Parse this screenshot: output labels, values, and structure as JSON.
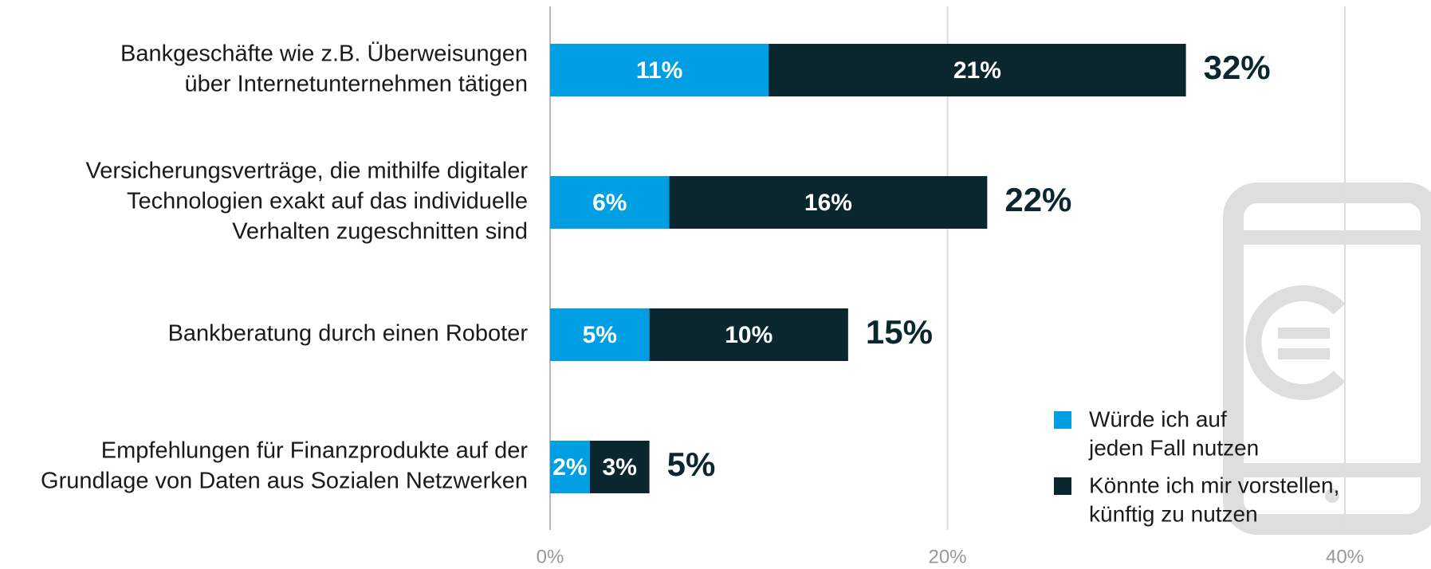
{
  "chart_data": {
    "type": "stacked_barh",
    "categories": [
      [
        "Bankgeschäfte wie z.B. Überweisungen",
        "über Internetunternehmen tätigen"
      ],
      [
        "Versicherungsverträge, die mithilfe digitaler",
        "Technologien exakt auf das individuelle",
        "Verhalten zugeschnitten sind"
      ],
      [
        "Bankberatung durch einen Roboter"
      ],
      [
        "Empfehlungen für Finanzprodukte auf der",
        "Grundlage von Daten aus Sozialen Netzwerken"
      ]
    ],
    "series": [
      {
        "name": [
          "Würde ich auf",
          "jeden Fall nutzen"
        ],
        "color": "#009fe3",
        "values": [
          11,
          6,
          5,
          2
        ],
        "value_labels": [
          "11%",
          "6%",
          "5%",
          "2%"
        ]
      },
      {
        "name": [
          "Könnte ich mir vorstellen,",
          "künftig zu nutzen"
        ],
        "color": "#0a2730",
        "values": [
          21,
          16,
          10,
          3
        ],
        "value_labels": [
          "21%",
          "16%",
          "10%",
          "3%"
        ]
      }
    ],
    "totals": [
      32,
      22,
      15,
      5
    ],
    "total_labels": [
      "32%",
      "22%",
      "15%",
      "5%"
    ],
    "xlim": [
      0,
      40
    ],
    "xticks": [
      {
        "value": 0,
        "label": "0%"
      },
      {
        "value": 20,
        "label": "20%"
      },
      {
        "value": 40,
        "label": "40%"
      }
    ],
    "grid": true
  }
}
